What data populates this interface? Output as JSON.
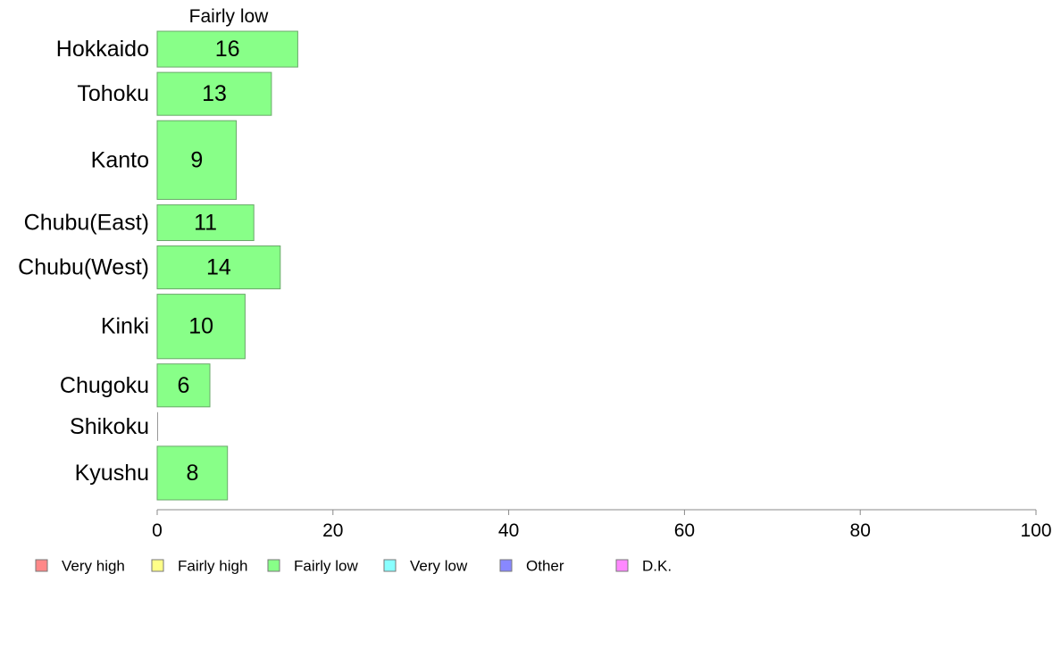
{
  "chart_data": {
    "type": "bar",
    "orientation": "horizontal",
    "panel_title": "Fairly low",
    "categories": [
      "Hokkaido",
      "Tohoku",
      "Kanto",
      "Chubu(East)",
      "Chubu(West)",
      "Kinki",
      "Chugoku",
      "Shikoku",
      "Kyushu"
    ],
    "series": [
      {
        "name": "Fairly low",
        "values": [
          16,
          13,
          9,
          11,
          14,
          10,
          6,
          0,
          8
        ],
        "color": "#88ff88"
      }
    ],
    "category_weights": [
      1.0,
      1.2,
      2.2,
      1.0,
      1.2,
      1.8,
      1.2,
      0.8,
      1.5
    ],
    "xlim": [
      0,
      100
    ],
    "xticks": [
      0,
      20,
      40,
      60,
      80,
      100
    ],
    "grid": false,
    "legend": {
      "placement": "bottom",
      "items": [
        {
          "label": "Very high",
          "color": "#ff8888"
        },
        {
          "label": "Fairly high",
          "color": "#ffff88"
        },
        {
          "label": "Fairly low",
          "color": "#88ff88"
        },
        {
          "label": "Very low",
          "color": "#88ffff"
        },
        {
          "label": "Other",
          "color": "#8888ff"
        },
        {
          "label": "D.K.",
          "color": "#ff88ff"
        }
      ]
    }
  }
}
